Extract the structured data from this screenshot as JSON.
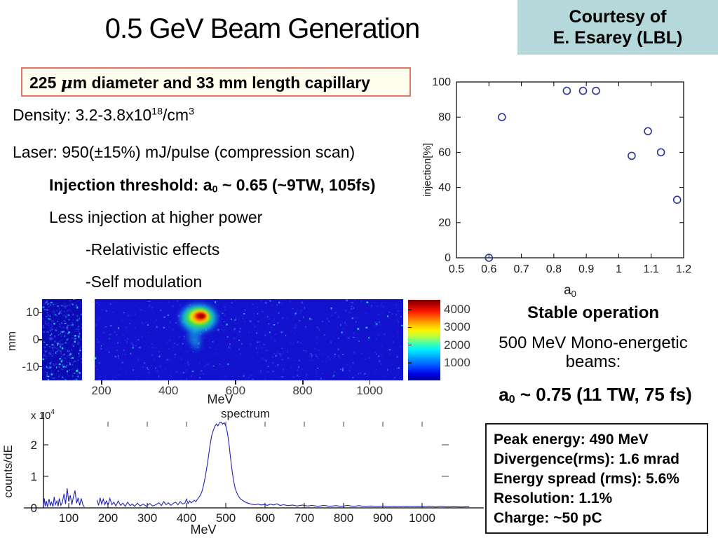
{
  "header": {
    "title": "0.5 GeV Beam Generation",
    "courtesy_line1": "Courtesy of",
    "courtesy_line2": "E. Esarey (LBL)"
  },
  "text": {
    "capillary": {
      "pre": "225 ",
      "mu": "μ",
      "post": "m diameter and 33 mm length capillary"
    },
    "density": {
      "p1": "Density: 3.2-3.8x10",
      "sup1": "18",
      "p2": "/cm",
      "sup2": "3"
    },
    "laser": "Laser: 950(±15%) mJ/pulse (compression scan)",
    "injection_threshold": {
      "p1": "Injection threshold: a",
      "sub": "0",
      "p2": " ~ 0.65 (~9TW, 105fs)"
    },
    "less_injection": "Less injection at higher power",
    "bullet_relativistic": "-Relativistic effects",
    "bullet_self_modulation": "-Self modulation",
    "stable_operation": "Stable operation",
    "mono_line1": "500 MeV Mono-energetic",
    "mono_line2": "beams:",
    "a0_operating": {
      "p1": "a",
      "sub": "0",
      "p2": " ~ 0.75 (11 TW, 75 fs)"
    },
    "results": {
      "lines": [
        "Peak energy: 490 MeV",
        "Divergence(rms): 1.6 mrad",
        "Energy spread (rms): 5.6%",
        "Resolution: 1.1%",
        "Charge: ~50 pC"
      ]
    }
  },
  "colors": {
    "courtesy_bg": "#b5d8da",
    "capillary_border": "#e0756a",
    "capillary_bg": "#fffdee",
    "scatter_marker": "#2d3596",
    "spectrum_curve": "#2222bb",
    "heat_main_bg": "#1212cf",
    "heat_left_bg": "#0b0bb4"
  },
  "chart_data": [
    {
      "id": "injection-vs-a0",
      "type": "scatter",
      "xlabel": "a",
      "xlabel_sub": "0",
      "ylabel": "injection[%]",
      "xlim": [
        0.5,
        1.2
      ],
      "ylim": [
        0,
        100
      ],
      "xticks": [
        0.5,
        0.6,
        0.7,
        0.8,
        0.9,
        1,
        1.1,
        1.2
      ],
      "yticks": [
        0,
        20,
        40,
        60,
        80,
        100
      ],
      "marker": "open-circle",
      "points": [
        [
          0.6,
          0
        ],
        [
          0.64,
          80
        ],
        [
          0.84,
          95
        ],
        [
          0.89,
          95
        ],
        [
          0.93,
          95
        ],
        [
          1.04,
          58
        ],
        [
          1.09,
          72
        ],
        [
          1.13,
          60
        ],
        [
          1.18,
          33
        ]
      ]
    },
    {
      "id": "beam-image",
      "type": "heatmap",
      "colormap": "jet",
      "xlabel": "MeV",
      "ylabel": "mm",
      "xticks": [
        200,
        400,
        600,
        800,
        1000
      ],
      "yticks": [
        10,
        0,
        -10
      ],
      "x_range_mev": [
        180,
        1100
      ],
      "y_range_mm": [
        15,
        -15
      ],
      "colorbar_ticks": [
        4000,
        3000,
        2000,
        1000
      ],
      "colorbar_max": 4560,
      "hotspot": {
        "x_mev": 490,
        "y_mm": 8
      }
    },
    {
      "id": "energy-spectrum",
      "type": "line",
      "title": "spectrum",
      "xlabel": "MeV",
      "ylabel": "counts/dE",
      "y_multiplier_label": "x 10",
      "y_multiplier_exp": "4",
      "xticks": [
        100,
        200,
        300,
        400,
        500,
        600,
        700,
        800,
        900,
        1000
      ],
      "yticks": [
        0,
        1,
        2
      ],
      "peak": {
        "x_mev": 490,
        "counts_1e4": 2.72
      },
      "segments": [
        [
          [
            35,
            0.02
          ],
          [
            38,
            0.3
          ],
          [
            40,
            0.05
          ],
          [
            43,
            0.22
          ],
          [
            46,
            0.03
          ],
          [
            50,
            0.28
          ],
          [
            53,
            0.08
          ],
          [
            56,
            0.18
          ],
          [
            60,
            0.04
          ],
          [
            63,
            0.35
          ],
          [
            66,
            0.1
          ],
          [
            70,
            0.22
          ],
          [
            73,
            0.05
          ],
          [
            76,
            0.3
          ],
          [
            80,
            0.08
          ],
          [
            84,
            0.18
          ],
          [
            88,
            0.45
          ],
          [
            92,
            0.12
          ],
          [
            96,
            0.62
          ],
          [
            100,
            0.2
          ],
          [
            104,
            0.4
          ],
          [
            108,
            0.1
          ],
          [
            112,
            0.35
          ],
          [
            116,
            0.55
          ],
          [
            120,
            0.15
          ],
          [
            124,
            0.32
          ],
          [
            128,
            0.08
          ],
          [
            132,
            0.3
          ],
          [
            136,
            0.1
          ],
          [
            140,
            0.03
          ]
        ],
        [
          [
            172,
            0.25
          ],
          [
            176,
            0.08
          ],
          [
            180,
            0.32
          ],
          [
            184,
            0.12
          ],
          [
            188,
            0.28
          ],
          [
            192,
            0.1
          ],
          [
            196,
            0.22
          ],
          [
            200,
            0.08
          ],
          [
            205,
            0.3
          ],
          [
            210,
            0.1
          ],
          [
            215,
            0.18
          ],
          [
            220,
            0.06
          ],
          [
            226,
            0.22
          ],
          [
            232,
            0.08
          ],
          [
            238,
            0.15
          ],
          [
            244,
            0.05
          ],
          [
            250,
            0.18
          ],
          [
            256,
            0.07
          ],
          [
            262,
            0.12
          ],
          [
            268,
            0.05
          ],
          [
            275,
            0.15
          ],
          [
            282,
            0.06
          ],
          [
            290,
            0.12
          ],
          [
            298,
            0.05
          ],
          [
            306,
            0.14
          ],
          [
            314,
            0.06
          ],
          [
            322,
            0.1
          ],
          [
            330,
            0.16
          ],
          [
            336,
            0.07
          ],
          [
            342,
            0.2
          ],
          [
            348,
            0.1
          ],
          [
            354,
            0.16
          ],
          [
            360,
            0.08
          ],
          [
            366,
            0.14
          ],
          [
            372,
            0.18
          ],
          [
            378,
            0.1
          ],
          [
            384,
            0.2
          ],
          [
            390,
            0.12
          ],
          [
            396,
            0.16
          ],
          [
            400,
            0.28
          ],
          [
            404,
            0.14
          ],
          [
            408,
            0.22
          ],
          [
            412,
            0.16
          ],
          [
            416,
            0.2
          ],
          [
            420,
            0.24
          ],
          [
            424,
            0.2
          ],
          [
            428,
            0.28
          ],
          [
            432,
            0.34
          ],
          [
            436,
            0.42
          ],
          [
            440,
            0.55
          ],
          [
            444,
            0.75
          ],
          [
            448,
            1.0
          ],
          [
            452,
            1.3
          ],
          [
            456,
            1.65
          ],
          [
            460,
            2.0
          ],
          [
            464,
            2.28
          ],
          [
            468,
            2.45
          ],
          [
            472,
            2.58
          ],
          [
            476,
            2.66
          ],
          [
            480,
            2.6
          ],
          [
            484,
            2.7
          ],
          [
            488,
            2.72
          ],
          [
            492,
            2.66
          ],
          [
            496,
            2.7
          ],
          [
            500,
            2.6
          ],
          [
            504,
            2.4
          ],
          [
            508,
            2.05
          ],
          [
            512,
            1.6
          ],
          [
            516,
            1.18
          ],
          [
            520,
            0.85
          ],
          [
            524,
            0.62
          ],
          [
            528,
            0.48
          ],
          [
            532,
            0.38
          ],
          [
            536,
            0.3
          ],
          [
            540,
            0.26
          ],
          [
            545,
            0.22
          ],
          [
            550,
            0.18
          ],
          [
            556,
            0.15
          ],
          [
            562,
            0.13
          ],
          [
            568,
            0.11
          ],
          [
            575,
            0.1
          ],
          [
            582,
            0.12
          ],
          [
            590,
            0.09
          ],
          [
            598,
            0.11
          ],
          [
            606,
            0.08
          ],
          [
            614,
            0.12
          ],
          [
            622,
            0.09
          ],
          [
            630,
            0.13
          ],
          [
            638,
            0.08
          ],
          [
            648,
            0.1
          ],
          [
            658,
            0.07
          ],
          [
            670,
            0.09
          ],
          [
            682,
            0.06
          ],
          [
            695,
            0.09
          ],
          [
            708,
            0.06
          ],
          [
            720,
            0.08
          ],
          [
            735,
            0.05
          ],
          [
            750,
            0.08
          ],
          [
            765,
            0.05
          ],
          [
            780,
            0.07
          ],
          [
            795,
            0.05
          ],
          [
            810,
            0.08
          ],
          [
            825,
            0.05
          ],
          [
            840,
            0.07
          ],
          [
            855,
            0.04
          ],
          [
            870,
            0.06
          ],
          [
            885,
            0.04
          ],
          [
            900,
            0.06
          ],
          [
            915,
            0.04
          ],
          [
            930,
            0.05
          ],
          [
            945,
            0.04
          ],
          [
            960,
            0.05
          ],
          [
            975,
            0.04
          ],
          [
            990,
            0.05
          ],
          [
            1005,
            0.04
          ],
          [
            1020,
            0.05
          ],
          [
            1035,
            0.03
          ],
          [
            1050,
            0.05
          ],
          [
            1065,
            0.03
          ],
          [
            1080,
            0.04
          ],
          [
            1100,
            0.03
          ],
          [
            1120,
            0.04
          ]
        ]
      ]
    }
  ]
}
